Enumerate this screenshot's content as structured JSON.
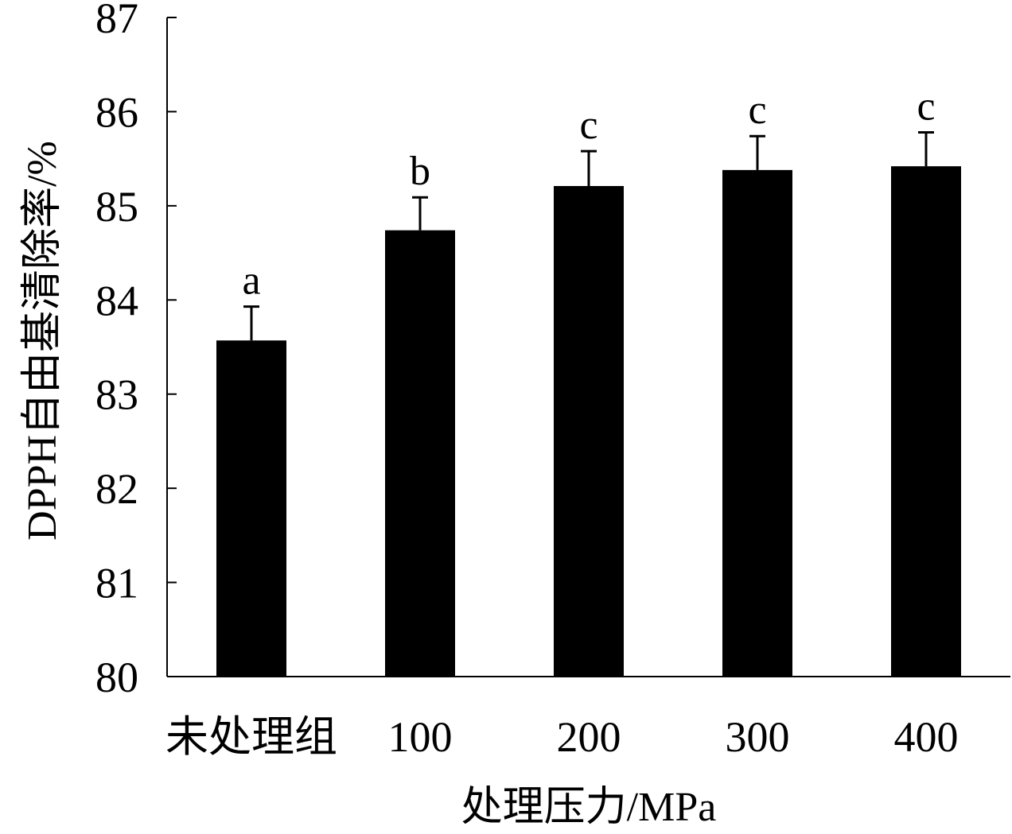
{
  "chart_data": {
    "type": "bar",
    "title": "",
    "xlabel": "处理压力/MPa",
    "ylabel": "DPPH自由基清除率/%",
    "categories": [
      "未处理组",
      "100",
      "200",
      "300",
      "400"
    ],
    "values": [
      83.57,
      84.74,
      85.21,
      85.38,
      85.42
    ],
    "errors": [
      0.36,
      0.35,
      0.37,
      0.36,
      0.36
    ],
    "significance": [
      "a",
      "b",
      "c",
      "c",
      "c"
    ],
    "ylim": [
      80,
      87
    ],
    "yticks": [
      "80",
      "81",
      "82",
      "83",
      "84",
      "85",
      "86",
      "87"
    ],
    "grid": false,
    "legend": "none",
    "colors": {
      "bar": "#000000",
      "axis": "#000000"
    }
  }
}
